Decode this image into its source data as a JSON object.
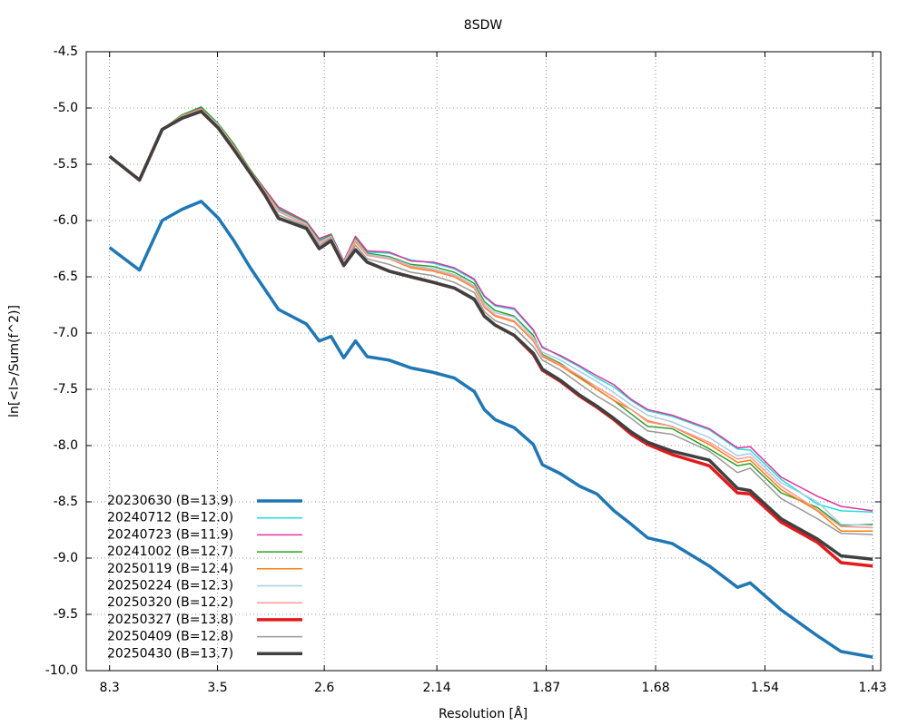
{
  "chart_data": {
    "type": "line",
    "title": "8SDW",
    "xlabel": "Resolution [Å]",
    "ylabel": "ln[<I>/Sum(f^2)]",
    "x": [
      0.0145,
      0.0331,
      0.0472,
      0.0596,
      0.0715,
      0.0822,
      0.0918,
      0.102,
      0.111,
      0.1195,
      0.1369,
      0.1448,
      0.1522,
      0.1601,
      0.1674,
      0.1747,
      0.1883,
      0.2018,
      0.2159,
      0.2289,
      0.2413,
      0.2475,
      0.2543,
      0.2661,
      0.278,
      0.2836,
      0.2949,
      0.3067,
      0.3175,
      0.3282,
      0.3389,
      0.3491,
      0.3643,
      0.3874,
      0.4049,
      0.4128,
      0.432,
      0.4546,
      0.4693,
      0.489
    ],
    "xlim": [
      0,
      0.494
    ],
    "xticks": [
      {
        "value": 0.0145,
        "label": "8.3"
      },
      {
        "value": 0.0816,
        "label": "3.5"
      },
      {
        "value": 0.148,
        "label": "2.6"
      },
      {
        "value": 0.218,
        "label": "2.14"
      },
      {
        "value": 0.286,
        "label": "1.87"
      },
      {
        "value": 0.354,
        "label": "1.68"
      },
      {
        "value": 0.422,
        "label": "1.54"
      },
      {
        "value": 0.489,
        "label": "1.43"
      }
    ],
    "ylim": [
      -10,
      -4.5
    ],
    "yticks": [
      -4.5,
      {
        "value": -5,
        "label": "-5.0"
      },
      -5.5,
      {
        "value": -6,
        "label": "-6.0"
      },
      -6.5,
      {
        "value": -7,
        "label": "-7.0"
      },
      -7.5,
      {
        "value": -8,
        "label": "-8.0"
      },
      -8.5,
      {
        "value": -9,
        "label": "-9.0"
      },
      -9.5,
      {
        "value": -10,
        "label": "-10.0"
      }
    ],
    "grid": true,
    "legend": "lower left",
    "series": [
      {
        "name": "20230630 (B=13.9)",
        "color": "#1f77b4",
        "values": [
          -6.24,
          -6.44,
          -6.0,
          -5.9,
          -5.83,
          -5.98,
          -6.18,
          -6.42,
          -6.61,
          -6.79,
          -6.92,
          -7.07,
          -7.03,
          -7.22,
          -7.07,
          -7.21,
          -7.24,
          -7.31,
          -7.35,
          -7.4,
          -7.52,
          -7.68,
          -7.77,
          -7.84,
          -7.99,
          -8.17,
          -8.25,
          -8.36,
          -8.43,
          -8.58,
          -8.7,
          -8.82,
          -8.87,
          -9.07,
          -9.26,
          -9.22,
          -9.46,
          -9.69,
          -9.83,
          -9.88
        ]
      },
      {
        "name": "20240712 (B=12.0)",
        "color": "#22dddd",
        "values": [
          -5.43,
          -5.63,
          -5.19,
          -5.07,
          -5.0,
          -5.15,
          -5.33,
          -5.55,
          -5.72,
          -5.89,
          -6.01,
          -6.17,
          -6.12,
          -6.36,
          -6.15,
          -6.28,
          -6.29,
          -6.35,
          -6.38,
          -6.43,
          -6.53,
          -6.68,
          -6.76,
          -6.79,
          -6.98,
          -7.12,
          -7.21,
          -7.3,
          -7.4,
          -7.48,
          -7.6,
          -7.69,
          -7.74,
          -7.86,
          -8.03,
          -8.04,
          -8.3,
          -8.52,
          -8.58,
          -8.59
        ]
      },
      {
        "name": "20240723 (B=11.9)",
        "color": "#e0359a",
        "values": [
          -5.43,
          -5.63,
          -5.19,
          -5.07,
          -5.0,
          -5.15,
          -5.33,
          -5.55,
          -5.72,
          -5.88,
          -6.01,
          -6.16,
          -6.12,
          -6.36,
          -6.14,
          -6.27,
          -6.28,
          -6.36,
          -6.37,
          -6.42,
          -6.52,
          -6.67,
          -6.75,
          -6.78,
          -6.97,
          -7.13,
          -7.2,
          -7.29,
          -7.38,
          -7.46,
          -7.59,
          -7.68,
          -7.73,
          -7.85,
          -8.02,
          -8.01,
          -8.28,
          -8.45,
          -8.54,
          -8.58
        ]
      },
      {
        "name": "20241002 (B=12.7)",
        "color": "#2ca02c",
        "values": [
          -5.43,
          -5.63,
          -5.19,
          -5.06,
          -4.99,
          -5.14,
          -5.32,
          -5.55,
          -5.73,
          -5.9,
          -6.02,
          -6.18,
          -6.13,
          -6.37,
          -6.16,
          -6.29,
          -6.32,
          -6.39,
          -6.41,
          -6.46,
          -6.56,
          -6.72,
          -6.8,
          -6.85,
          -7.02,
          -7.19,
          -7.27,
          -7.39,
          -7.5,
          -7.6,
          -7.72,
          -7.83,
          -7.85,
          -8.03,
          -8.18,
          -8.16,
          -8.42,
          -8.55,
          -8.71,
          -8.7
        ]
      },
      {
        "name": "20250119 (B=12.4)",
        "color": "#ff7f0e",
        "values": [
          -5.43,
          -5.63,
          -5.19,
          -5.07,
          -5.01,
          -5.16,
          -5.34,
          -5.56,
          -5.74,
          -5.92,
          -6.04,
          -6.2,
          -6.15,
          -6.38,
          -6.19,
          -6.31,
          -6.34,
          -6.42,
          -6.45,
          -6.5,
          -6.6,
          -6.77,
          -6.85,
          -6.9,
          -7.07,
          -7.21,
          -7.29,
          -7.4,
          -7.5,
          -7.6,
          -7.68,
          -7.78,
          -7.83,
          -7.99,
          -8.15,
          -8.13,
          -8.39,
          -8.58,
          -8.76,
          -8.76
        ]
      },
      {
        "name": "20250224 (B=12.3)",
        "color": "#a6cee3",
        "values": [
          -5.43,
          -5.63,
          -5.19,
          -5.07,
          -5.01,
          -5.15,
          -5.34,
          -5.56,
          -5.74,
          -5.91,
          -6.03,
          -6.19,
          -6.14,
          -6.37,
          -6.17,
          -6.3,
          -6.33,
          -6.4,
          -6.43,
          -6.48,
          -6.58,
          -6.74,
          -6.82,
          -6.86,
          -7.04,
          -7.17,
          -7.24,
          -7.34,
          -7.43,
          -7.53,
          -7.64,
          -7.73,
          -7.79,
          -7.93,
          -8.09,
          -8.07,
          -8.33,
          -8.5,
          -8.7,
          -8.71
        ]
      },
      {
        "name": "20250320 (B=12.2)",
        "color": "#fb9a99",
        "values": [
          -5.43,
          -5.63,
          -5.19,
          -5.07,
          -5.01,
          -5.16,
          -5.34,
          -5.56,
          -5.74,
          -5.92,
          -6.04,
          -6.2,
          -6.15,
          -6.38,
          -6.18,
          -6.31,
          -6.34,
          -6.41,
          -6.44,
          -6.49,
          -6.59,
          -6.76,
          -6.84,
          -6.89,
          -7.06,
          -7.2,
          -7.28,
          -7.38,
          -7.48,
          -7.57,
          -7.68,
          -7.79,
          -7.83,
          -7.97,
          -8.12,
          -8.1,
          -8.36,
          -8.57,
          -8.72,
          -8.73
        ]
      },
      {
        "name": "20250327 (B=13.8)",
        "color": "#e31a1c",
        "values": [
          -5.43,
          -5.64,
          -5.19,
          -5.09,
          -5.03,
          -5.18,
          -5.37,
          -5.58,
          -5.77,
          -5.98,
          -6.07,
          -6.25,
          -6.18,
          -6.4,
          -6.26,
          -6.37,
          -6.45,
          -6.5,
          -6.55,
          -6.6,
          -6.7,
          -6.85,
          -6.93,
          -7.02,
          -7.19,
          -7.33,
          -7.43,
          -7.56,
          -7.66,
          -7.77,
          -7.9,
          -7.99,
          -8.08,
          -8.18,
          -8.42,
          -8.43,
          -8.68,
          -8.86,
          -9.04,
          -9.07
        ]
      },
      {
        "name": "20250409 (B=12.8)",
        "color": "#999999",
        "values": [
          -5.43,
          -5.63,
          -5.19,
          -5.08,
          -5.02,
          -5.17,
          -5.36,
          -5.57,
          -5.76,
          -5.95,
          -6.05,
          -6.22,
          -6.16,
          -6.39,
          -6.22,
          -6.34,
          -6.39,
          -6.46,
          -6.49,
          -6.55,
          -6.64,
          -6.81,
          -6.89,
          -6.95,
          -7.12,
          -7.24,
          -7.33,
          -7.45,
          -7.56,
          -7.65,
          -7.76,
          -7.87,
          -7.9,
          -8.05,
          -8.24,
          -8.2,
          -8.47,
          -8.65,
          -8.78,
          -8.79
        ]
      },
      {
        "name": "20250430 (B=13.7)",
        "color": "#404040",
        "values": [
          -5.43,
          -5.64,
          -5.19,
          -5.09,
          -5.03,
          -5.18,
          -5.37,
          -5.58,
          -5.77,
          -5.98,
          -6.07,
          -6.25,
          -6.18,
          -6.4,
          -6.26,
          -6.37,
          -6.45,
          -6.5,
          -6.55,
          -6.6,
          -6.7,
          -6.85,
          -6.93,
          -7.02,
          -7.18,
          -7.32,
          -7.42,
          -7.55,
          -7.65,
          -7.76,
          -7.88,
          -7.97,
          -8.05,
          -8.13,
          -8.38,
          -8.4,
          -8.65,
          -8.83,
          -8.98,
          -9.01
        ]
      }
    ]
  }
}
